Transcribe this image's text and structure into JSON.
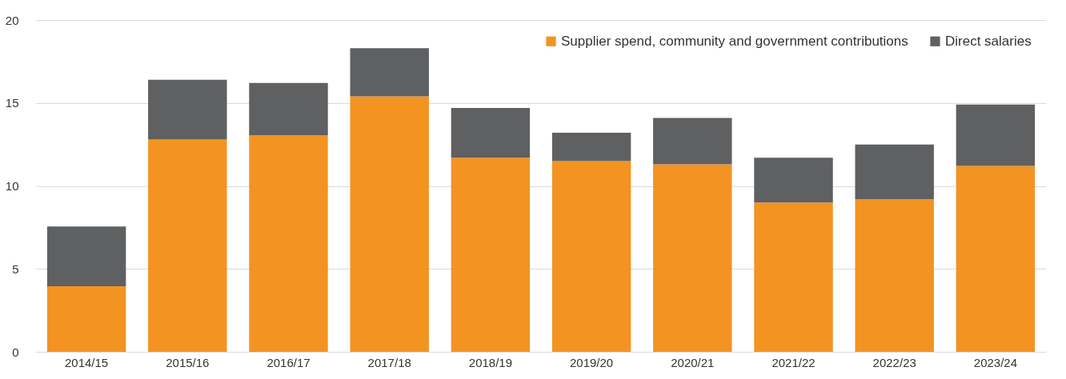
{
  "chart_data": {
    "type": "bar",
    "stacked": true,
    "categories": [
      "2014/15",
      "2015/16",
      "2016/17",
      "2017/18",
      "2018/19",
      "2019/20",
      "2020/21",
      "2021/22",
      "2022/23",
      "2023/24"
    ],
    "series": [
      {
        "name": "Supplier spend, community and government contributions",
        "color": "#f39322",
        "values": [
          3.95,
          12.8,
          13.05,
          15.4,
          11.7,
          11.5,
          11.3,
          9.0,
          9.2,
          11.2
        ]
      },
      {
        "name": "Direct salaries",
        "color": "#5f6062",
        "values": [
          3.6,
          3.6,
          3.15,
          2.9,
          3.0,
          1.7,
          2.8,
          2.7,
          3.3,
          3.7
        ]
      }
    ],
    "ylim": [
      0,
      20
    ],
    "yticks": [
      0,
      5,
      10,
      15,
      20
    ],
    "grid": "y",
    "legend": "top right"
  }
}
